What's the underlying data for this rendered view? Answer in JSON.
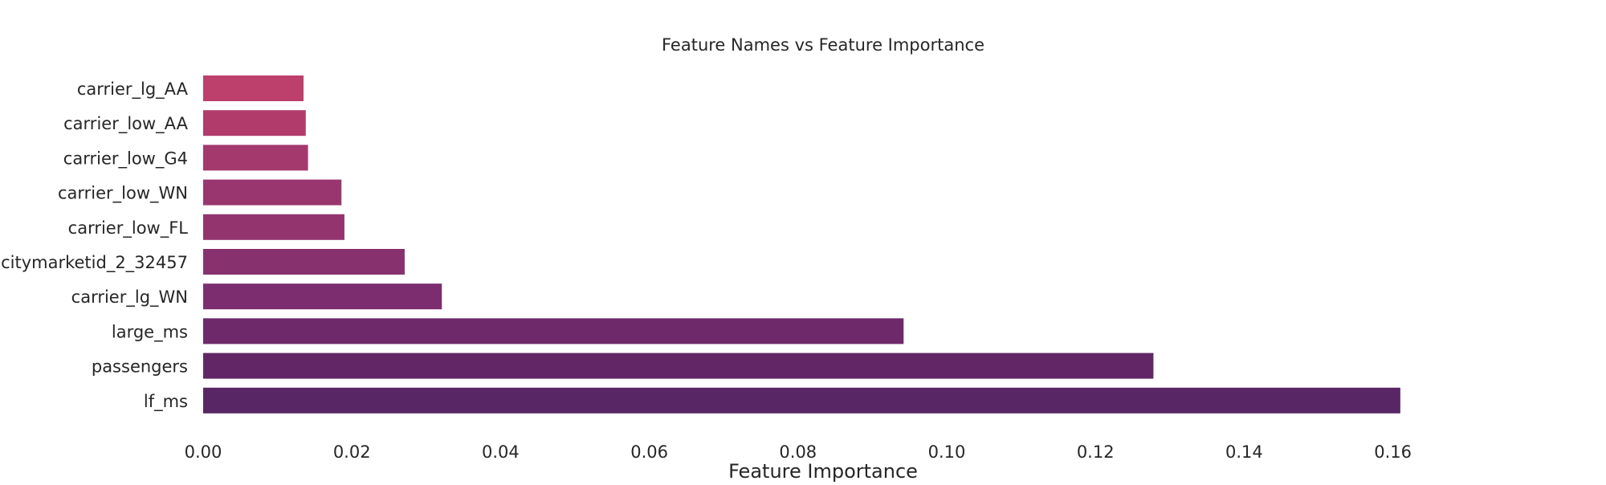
{
  "chart_data": {
    "type": "bar",
    "orientation": "horizontal",
    "title": "Feature Names vs Feature Importance",
    "xlabel": "Feature Importance",
    "ylabel": "",
    "xlim": [
      0,
      0.19
    ],
    "xticks": [
      0.0,
      0.02,
      0.04,
      0.06,
      0.08,
      0.1,
      0.12,
      0.14,
      0.16
    ],
    "xtick_labels": [
      "0.00",
      "0.02",
      "0.04",
      "0.06",
      "0.08",
      "0.10",
      "0.12",
      "0.14",
      "0.16"
    ],
    "grid": false,
    "legend": "none",
    "categories": [
      "carrier_lg_AA",
      "carrier_low_AA",
      "carrier_low_G4",
      "carrier_low_WN",
      "carrier_low_FL",
      "citymarketid_2_32457",
      "carrier_lg_WN",
      "large_ms",
      "passengers",
      "lf_ms"
    ],
    "values": [
      0.0135,
      0.0138,
      0.0141,
      0.0186,
      0.019,
      0.0271,
      0.0321,
      0.0942,
      0.1278,
      0.161
    ],
    "colors": [
      "#bd3f6b",
      "#b13c6c",
      "#a4396d",
      "#9a366f",
      "#93346f",
      "#88316f",
      "#7c2d6f",
      "#6e296a",
      "#622667",
      "#582565"
    ]
  }
}
